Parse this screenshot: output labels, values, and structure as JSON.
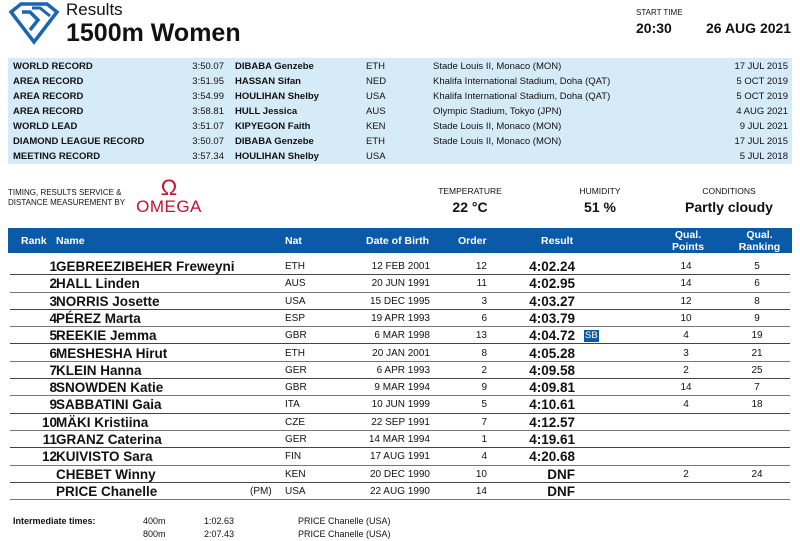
{
  "header": {
    "subtitle": "Results",
    "event": "1500m Women",
    "start_time_label": "START TIME",
    "start_time": "20:30",
    "date": "26 AUG 2021",
    "brand_color": "#0b5aa7"
  },
  "records": [
    {
      "label": "WORLD RECORD",
      "time": "3:50.07",
      "name": "DIBABA Genzebe",
      "nat": "ETH",
      "venue": "Stade Louis II, Monaco (MON)",
      "date": "17 JUL 2015"
    },
    {
      "label": "AREA RECORD",
      "time": "3:51.95",
      "name": "HASSAN Sifan",
      "nat": "NED",
      "venue": "Khalifa International Stadium, Doha (QAT)",
      "date": "5 OCT 2019"
    },
    {
      "label": "AREA RECORD",
      "time": "3:54.99",
      "name": "HOULIHAN Shelby",
      "nat": "USA",
      "venue": "Khalifa International Stadium, Doha (QAT)",
      "date": "5 OCT 2019"
    },
    {
      "label": "AREA RECORD",
      "time": "3:58.81",
      "name": "HULL Jessica",
      "nat": "AUS",
      "venue": "Olympic Stadium, Tokyo (JPN)",
      "date": "4 AUG 2021"
    },
    {
      "label": "WORLD LEAD",
      "time": "3:51.07",
      "name": "KIPYEGON Faith",
      "nat": "KEN",
      "venue": "Stade Louis II, Monaco (MON)",
      "date": "9 JUL 2021"
    },
    {
      "label": "DIAMOND LEAGUE RECORD",
      "time": "3:50.07",
      "name": "DIBABA Genzebe",
      "nat": "ETH",
      "venue": "Stade Louis II, Monaco (MON)",
      "date": "17 JUL 2015"
    },
    {
      "label": "MEETING RECORD",
      "time": "3:57.34",
      "name": "HOULIHAN Shelby",
      "nat": "USA",
      "venue": "",
      "date": "5 JUL 2018"
    }
  ],
  "timing": {
    "text": "TIMING, RESULTS SERVICE & DISTANCE MEASUREMENT BY",
    "logo": "OMEGA"
  },
  "weather": {
    "temperature_label": "TEMPERATURE",
    "temperature": "22 °C",
    "humidity_label": "HUMIDITY",
    "humidity": "51 %",
    "conditions_label": "CONDITIONS",
    "conditions": "Partly cloudy"
  },
  "columns": {
    "rank": "Rank",
    "name": "Name",
    "nat": "Nat",
    "dob": "Date of Birth",
    "order": "Order",
    "result": "Result",
    "qp1": "Qual.",
    "qp2": "Points",
    "qr1": "Qual.",
    "qr2": "Ranking"
  },
  "results": [
    {
      "rank": "1",
      "name": "GEBREEZIBEHER Freweyni",
      "pm": "",
      "nat": "ETH",
      "dob": "12 FEB 2001",
      "order": "12",
      "result": "4:02.24",
      "note": "",
      "qp": "14",
      "qr": "5"
    },
    {
      "rank": "2",
      "name": "HALL Linden",
      "pm": "",
      "nat": "AUS",
      "dob": "20 JUN 1991",
      "order": "11",
      "result": "4:02.95",
      "note": "",
      "qp": "14",
      "qr": "6"
    },
    {
      "rank": "3",
      "name": "NORRIS Josette",
      "pm": "",
      "nat": "USA",
      "dob": "15 DEC 1995",
      "order": "3",
      "result": "4:03.27",
      "note": "",
      "qp": "12",
      "qr": "8"
    },
    {
      "rank": "4",
      "name": "PÉREZ Marta",
      "pm": "",
      "nat": "ESP",
      "dob": "19 APR 1993",
      "order": "6",
      "result": "4:03.79",
      "note": "",
      "qp": "10",
      "qr": "9"
    },
    {
      "rank": "5",
      "name": "REEKIE Jemma",
      "pm": "",
      "nat": "GBR",
      "dob": "6 MAR 1998",
      "order": "13",
      "result": "4:04.72",
      "note": "SB",
      "qp": "4",
      "qr": "19"
    },
    {
      "rank": "6",
      "name": "MESHESHA Hirut",
      "pm": "",
      "nat": "ETH",
      "dob": "20 JAN 2001",
      "order": "8",
      "result": "4:05.28",
      "note": "",
      "qp": "3",
      "qr": "21"
    },
    {
      "rank": "7",
      "name": "KLEIN Hanna",
      "pm": "",
      "nat": "GER",
      "dob": "6 APR 1993",
      "order": "2",
      "result": "4:09.58",
      "note": "",
      "qp": "2",
      "qr": "25"
    },
    {
      "rank": "8",
      "name": "SNOWDEN Katie",
      "pm": "",
      "nat": "GBR",
      "dob": "9 MAR 1994",
      "order": "9",
      "result": "4:09.81",
      "note": "",
      "qp": "14",
      "qr": "7"
    },
    {
      "rank": "9",
      "name": "SABBATINI Gaia",
      "pm": "",
      "nat": "ITA",
      "dob": "10 JUN 1999",
      "order": "5",
      "result": "4:10.61",
      "note": "",
      "qp": "4",
      "qr": "18"
    },
    {
      "rank": "10",
      "name": "MÄKI Kristiina",
      "pm": "",
      "nat": "CZE",
      "dob": "22 SEP 1991",
      "order": "7",
      "result": "4:12.57",
      "note": "",
      "qp": "",
      "qr": ""
    },
    {
      "rank": "11",
      "name": "GRANZ Caterina",
      "pm": "",
      "nat": "GER",
      "dob": "14 MAR 1994",
      "order": "1",
      "result": "4:19.61",
      "note": "",
      "qp": "",
      "qr": ""
    },
    {
      "rank": "12",
      "name": "KUIVISTO Sara",
      "pm": "",
      "nat": "FIN",
      "dob": "17 AUG 1991",
      "order": "4",
      "result": "4:20.68",
      "note": "",
      "qp": "",
      "qr": ""
    },
    {
      "rank": "",
      "name": "CHEBET Winny",
      "pm": "",
      "nat": "KEN",
      "dob": "20 DEC 1990",
      "order": "10",
      "result": "DNF",
      "note": "",
      "qp": "2",
      "qr": "24"
    },
    {
      "rank": "",
      "name": "PRICE Chanelle",
      "pm": "(PM)",
      "nat": "USA",
      "dob": "22 AUG 1990",
      "order": "14",
      "result": "DNF",
      "note": "",
      "qp": "",
      "qr": ""
    }
  ],
  "intermediate": {
    "label": "Intermediate times:",
    "splits": [
      {
        "dist": "400m",
        "time": "1:02.63",
        "leader": "PRICE Chanelle (USA)"
      },
      {
        "dist": "800m",
        "time": "2:07.43",
        "leader": "PRICE Chanelle (USA)"
      }
    ]
  }
}
